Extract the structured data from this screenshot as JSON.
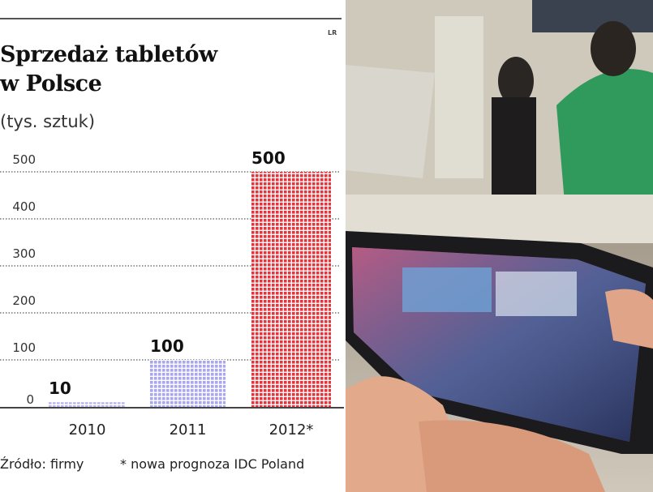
{
  "chart_data": {
    "type": "bar",
    "title": "Sprzedaż tabletów w Polsce",
    "title_lines": [
      "Sprzedaż tabletów",
      "w Polsce"
    ],
    "ylabel": "(tys. sztuk)",
    "categories": [
      "2010",
      "2011",
      "2012*"
    ],
    "values": [
      10,
      100,
      500
    ],
    "data_labels": [
      "10",
      "100",
      "500"
    ],
    "bar_colors": [
      "#b8b6f0",
      "#a9a6f2",
      "#e8333a"
    ],
    "ylim": [
      0,
      500
    ],
    "yticks": [
      0,
      100,
      200,
      300,
      400,
      500
    ],
    "ytick_labels": [
      "0",
      "100",
      "200",
      "300",
      "400",
      "500"
    ],
    "grid": true,
    "source": "Źródło: firmy",
    "note": "* nowa prognoza IDC Poland",
    "credit": "LR"
  }
}
